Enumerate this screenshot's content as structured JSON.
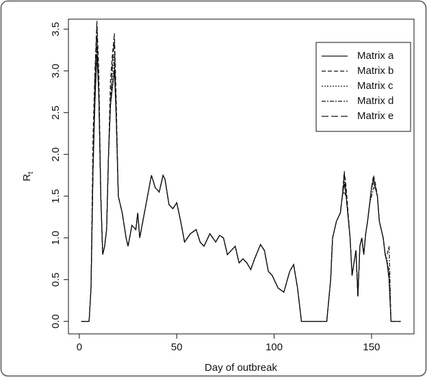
{
  "chart_data": {
    "type": "line",
    "xlabel": "Day of outbreak",
    "ylabel": "R",
    "ylabel_subscript": "t",
    "xlim": [
      -5.6,
      171.8
    ],
    "ylim": [
      -0.15,
      3.62
    ],
    "xticks": [
      0,
      50,
      100,
      150
    ],
    "yticks": [
      {
        "value": 0,
        "label": "0.0"
      },
      0.5,
      {
        "value": 1,
        "label": "1.0"
      },
      1.5,
      {
        "value": 2,
        "label": "2.0"
      },
      2.5,
      {
        "value": 3,
        "label": "3.0"
      },
      3.5
    ],
    "legend": "top-right",
    "x": [
      1,
      5,
      6,
      7,
      8,
      9,
      10,
      11,
      12,
      13,
      14,
      15,
      16,
      17,
      18,
      19,
      20,
      22,
      24,
      25,
      27,
      29,
      30,
      31,
      33,
      35,
      37,
      39,
      41,
      43,
      44,
      46,
      48,
      50,
      52,
      54,
      57,
      60,
      62,
      64,
      67,
      70,
      72,
      74,
      76,
      78,
      80,
      82,
      84,
      86,
      88,
      90,
      93,
      95,
      97,
      99,
      102,
      105,
      108,
      110,
      112,
      114,
      127,
      129,
      130,
      132,
      134,
      135,
      136,
      137,
      139,
      140,
      141,
      142,
      143,
      144,
      145,
      146,
      147,
      148,
      149,
      150,
      151,
      152,
      153,
      154,
      156,
      157,
      158,
      159,
      160,
      165
    ],
    "series": [
      {
        "name": "Matrix a",
        "color": "#111111",
        "dash": "none",
        "values": [
          0,
          0,
          0.4,
          1.8,
          2.6,
          3.2,
          2.7,
          1.5,
          0.8,
          0.9,
          1.1,
          2.0,
          2.6,
          2.8,
          3.0,
          2.4,
          1.5,
          1.3,
          1.0,
          0.9,
          1.15,
          1.1,
          1.3,
          1.0,
          1.25,
          1.5,
          1.75,
          1.6,
          1.55,
          1.75,
          1.7,
          1.4,
          1.35,
          1.42,
          1.2,
          0.95,
          1.05,
          1.1,
          0.95,
          0.9,
          1.05,
          0.95,
          1.03,
          1.0,
          0.8,
          0.85,
          0.9,
          0.7,
          0.75,
          0.7,
          0.62,
          0.75,
          0.92,
          0.85,
          0.6,
          0.55,
          0.4,
          0.35,
          0.6,
          0.68,
          0.4,
          0,
          0,
          0.5,
          1.0,
          1.2,
          1.3,
          1.5,
          1.65,
          1.5,
          1.0,
          0.55,
          0.7,
          0.85,
          0.3,
          0.9,
          1.0,
          0.8,
          1.05,
          1.2,
          1.4,
          1.6,
          1.7,
          1.6,
          1.5,
          1.2,
          1.0,
          0.8,
          0.7,
          0.5,
          0,
          0
        ]
      },
      {
        "name": "Matrix b",
        "color": "#111111",
        "dash": "6,3",
        "values": [
          0,
          0,
          0.4,
          2.2,
          3.0,
          3.6,
          3.0,
          1.5,
          0.8,
          0.9,
          1.1,
          2.0,
          2.9,
          3.2,
          3.45,
          2.6,
          1.5,
          1.3,
          1.0,
          0.9,
          1.15,
          1.1,
          1.3,
          1.0,
          1.25,
          1.5,
          1.75,
          1.6,
          1.55,
          1.75,
          1.7,
          1.4,
          1.35,
          1.42,
          1.2,
          0.95,
          1.05,
          1.1,
          0.95,
          0.9,
          1.05,
          0.95,
          1.03,
          1.0,
          0.8,
          0.85,
          0.9,
          0.7,
          0.75,
          0.7,
          0.62,
          0.75,
          0.92,
          0.85,
          0.6,
          0.55,
          0.4,
          0.35,
          0.6,
          0.68,
          0.4,
          0,
          0,
          0.5,
          1.0,
          1.2,
          1.3,
          1.5,
          1.8,
          1.6,
          1.0,
          0.55,
          0.7,
          0.85,
          0.3,
          0.9,
          1.0,
          0.8,
          1.05,
          1.2,
          1.4,
          1.6,
          1.75,
          1.65,
          1.5,
          1.2,
          1.0,
          0.8,
          0.7,
          0.6,
          0,
          0
        ]
      },
      {
        "name": "Matrix c",
        "color": "#111111",
        "dash": "2,2",
        "values": [
          0,
          0,
          0.4,
          1.8,
          2.8,
          3.4,
          2.7,
          1.5,
          0.8,
          0.9,
          1.1,
          2.0,
          2.6,
          3.0,
          3.2,
          2.4,
          1.5,
          1.3,
          1.0,
          0.9,
          1.15,
          1.1,
          1.3,
          1.0,
          1.25,
          1.5,
          1.75,
          1.6,
          1.55,
          1.75,
          1.7,
          1.4,
          1.35,
          1.42,
          1.2,
          0.95,
          1.05,
          1.1,
          0.95,
          0.9,
          1.05,
          0.95,
          1.03,
          1.0,
          0.8,
          0.85,
          0.9,
          0.7,
          0.75,
          0.7,
          0.62,
          0.75,
          0.92,
          0.85,
          0.6,
          0.55,
          0.4,
          0.35,
          0.6,
          0.68,
          0.4,
          0,
          0,
          0.5,
          1.0,
          1.2,
          1.3,
          1.5,
          1.7,
          1.5,
          1.0,
          0.55,
          0.7,
          0.85,
          0.3,
          0.9,
          1.0,
          0.8,
          1.05,
          1.2,
          1.4,
          1.6,
          1.65,
          1.6,
          1.5,
          1.2,
          1.0,
          0.8,
          0.75,
          0.5,
          0,
          0
        ]
      },
      {
        "name": "Matrix d",
        "color": "#111111",
        "dash": "6,2,2,2",
        "values": [
          0,
          0,
          0.4,
          1.8,
          2.7,
          3.3,
          2.7,
          1.5,
          0.8,
          0.9,
          1.1,
          2.0,
          2.6,
          2.8,
          3.1,
          2.4,
          1.5,
          1.3,
          1.0,
          0.9,
          1.15,
          1.1,
          1.3,
          1.0,
          1.25,
          1.5,
          1.75,
          1.6,
          1.55,
          1.75,
          1.7,
          1.4,
          1.35,
          1.42,
          1.2,
          0.95,
          1.05,
          1.1,
          0.95,
          0.9,
          1.05,
          0.95,
          1.03,
          1.0,
          0.8,
          0.85,
          0.9,
          0.7,
          0.75,
          0.7,
          0.62,
          0.75,
          0.92,
          0.85,
          0.6,
          0.55,
          0.4,
          0.35,
          0.6,
          0.68,
          0.4,
          0,
          0,
          0.5,
          1.0,
          1.2,
          1.3,
          1.5,
          1.55,
          1.5,
          1.0,
          0.55,
          0.7,
          0.85,
          0.3,
          0.9,
          1.0,
          0.8,
          1.05,
          1.2,
          1.4,
          1.5,
          1.6,
          1.6,
          1.5,
          1.2,
          1.0,
          0.8,
          0.8,
          0.9,
          0,
          0
        ]
      },
      {
        "name": "Matrix e",
        "color": "#111111",
        "dash": "10,4",
        "values": [
          0,
          0,
          0.4,
          1.8,
          2.9,
          3.55,
          2.7,
          1.5,
          0.8,
          0.9,
          1.1,
          2.0,
          2.6,
          3.1,
          3.35,
          2.4,
          1.5,
          1.3,
          1.0,
          0.9,
          1.15,
          1.1,
          1.3,
          1.0,
          1.25,
          1.5,
          1.75,
          1.6,
          1.55,
          1.75,
          1.7,
          1.4,
          1.35,
          1.42,
          1.2,
          0.95,
          1.05,
          1.1,
          0.95,
          0.9,
          1.05,
          0.95,
          1.03,
          1.0,
          0.8,
          0.85,
          0.9,
          0.7,
          0.75,
          0.7,
          0.62,
          0.75,
          0.92,
          0.85,
          0.6,
          0.55,
          0.4,
          0.35,
          0.6,
          0.68,
          0.4,
          0,
          0,
          0.5,
          1.0,
          1.2,
          1.3,
          1.5,
          1.78,
          1.5,
          1.0,
          0.55,
          0.7,
          0.85,
          0.3,
          0.9,
          1.0,
          0.8,
          1.05,
          1.2,
          1.4,
          1.6,
          1.72,
          1.6,
          1.5,
          1.2,
          1.0,
          0.8,
          0.7,
          0.5,
          0,
          0
        ]
      }
    ]
  }
}
